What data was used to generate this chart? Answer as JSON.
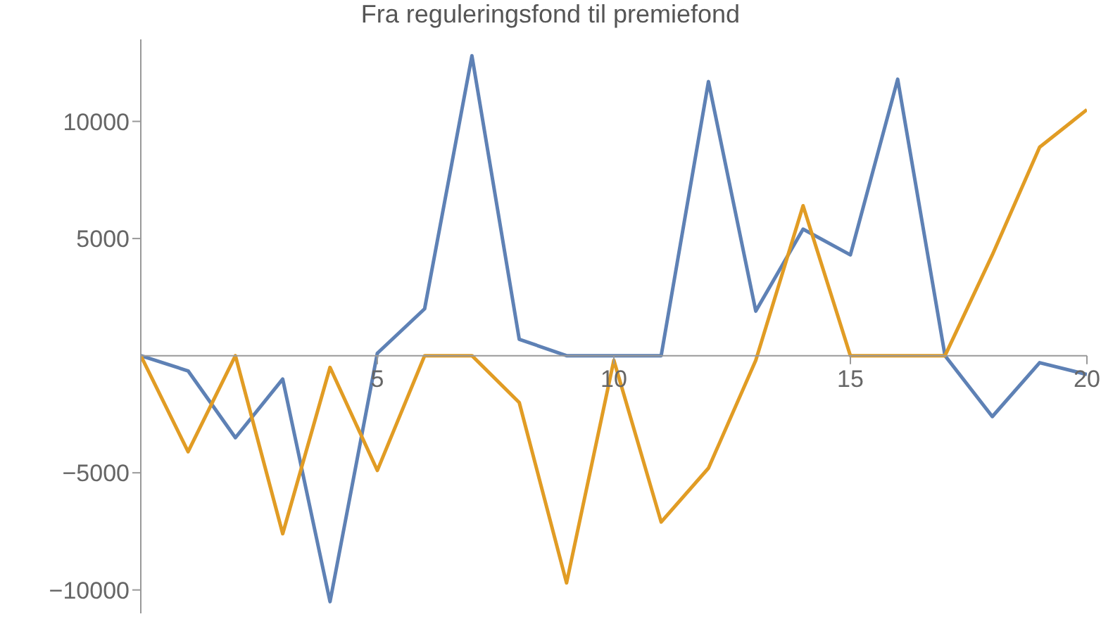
{
  "chart_data": {
    "type": "line",
    "title": "Fra reguleringsfond til premiefond",
    "x": [
      0,
      1,
      2,
      3,
      4,
      5,
      6,
      7,
      8,
      9,
      10,
      11,
      12,
      13,
      14,
      15,
      16,
      17,
      18,
      19,
      20
    ],
    "series": [
      {
        "color": "#5e81b5",
        "values": [
          0,
          -650,
          -3500,
          -1000,
          -10500,
          100,
          2000,
          12800,
          700,
          0,
          0,
          0,
          11700,
          1900,
          5400,
          4300,
          11800,
          0,
          -2600,
          -300,
          -800
        ]
      },
      {
        "color": "#e19c24",
        "values": [
          0,
          -4100,
          0,
          -7600,
          -500,
          -4900,
          0,
          0,
          -2000,
          -9700,
          -200,
          -7100,
          -4800,
          -200,
          6400,
          0,
          0,
          0,
          4300,
          8900,
          10500
        ]
      }
    ],
    "xlim": [
      0,
      20
    ],
    "xticks": [
      5,
      10,
      15,
      20
    ],
    "ylim": [
      -11000,
      13500
    ],
    "yticks": [
      {
        "value": -10000,
        "label": "−10000"
      },
      {
        "value": -5000,
        "label": "−5000"
      },
      5000,
      10000
    ],
    "marker": "none",
    "line_style": "solid"
  }
}
